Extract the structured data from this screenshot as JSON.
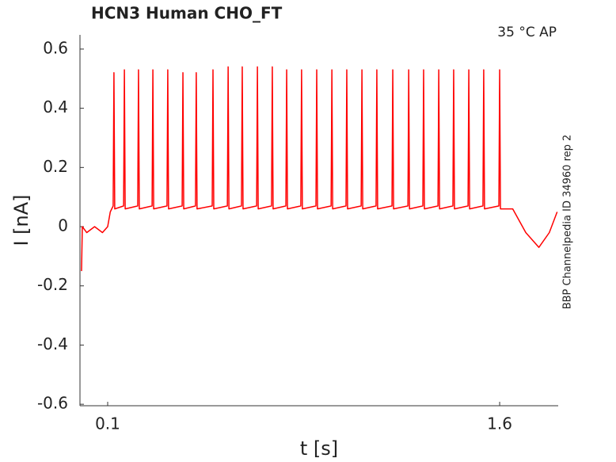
{
  "chart_data": {
    "type": "line",
    "title": "HCN3  Human  CHO_FT",
    "annotation": "35 °C  AP",
    "side_note": "BBP Channelpedia ID 34960 rep 2",
    "x_label": "t [s]",
    "y_label": "I [nA]",
    "xlim": [
      -0.006,
      1.824
    ],
    "ylim": [
      -0.605,
      0.648
    ],
    "xticks": [
      0.1,
      1.6
    ],
    "yticks": [
      -0.6,
      -0.4,
      -0.2,
      0,
      0.2,
      0.4,
      0.6
    ],
    "series": [
      {
        "color": "#ff0000",
        "x": [
          0,
          0.003,
          0.02,
          0.05,
          0.08,
          0.1,
          0.11,
          0.121,
          0.124,
          0.127,
          0.161,
          0.164,
          0.167,
          0.215,
          0.218,
          0.221,
          0.27,
          0.273,
          0.276,
          0.327,
          0.33,
          0.333,
          0.385,
          0.388,
          0.391,
          0.436,
          0.439,
          0.442,
          0.5,
          0.503,
          0.506,
          0.558,
          0.561,
          0.564,
          0.612,
          0.615,
          0.618,
          0.67,
          0.673,
          0.676,
          0.727,
          0.73,
          0.733,
          0.782,
          0.785,
          0.788,
          0.839,
          0.842,
          0.845,
          0.897,
          0.9,
          0.903,
          0.955,
          0.958,
          0.961,
          1.012,
          1.015,
          1.018,
          1.07,
          1.073,
          1.076,
          1.127,
          1.13,
          1.133,
          1.188,
          1.191,
          1.194,
          1.249,
          1.252,
          1.255,
          1.306,
          1.309,
          1.312,
          1.364,
          1.367,
          1.37,
          1.421,
          1.424,
          1.427,
          1.479,
          1.482,
          1.485,
          1.536,
          1.539,
          1.542,
          1.597,
          1.6,
          1.603,
          1.65,
          1.7,
          1.75,
          1.79,
          1.82
        ],
        "values": [
          -0.15,
          0.0,
          -0.02,
          0.0,
          -0.02,
          0.0,
          0.05,
          0.07,
          0.52,
          0.06,
          0.07,
          0.53,
          0.06,
          0.07,
          0.53,
          0.06,
          0.07,
          0.53,
          0.06,
          0.07,
          0.53,
          0.06,
          0.07,
          0.52,
          0.06,
          0.07,
          0.52,
          0.06,
          0.07,
          0.53,
          0.06,
          0.07,
          0.54,
          0.06,
          0.07,
          0.54,
          0.06,
          0.07,
          0.54,
          0.06,
          0.07,
          0.54,
          0.06,
          0.07,
          0.53,
          0.06,
          0.07,
          0.53,
          0.06,
          0.07,
          0.53,
          0.06,
          0.07,
          0.53,
          0.06,
          0.07,
          0.53,
          0.06,
          0.07,
          0.53,
          0.06,
          0.07,
          0.53,
          0.06,
          0.07,
          0.53,
          0.06,
          0.07,
          0.53,
          0.06,
          0.07,
          0.53,
          0.06,
          0.07,
          0.53,
          0.06,
          0.07,
          0.53,
          0.06,
          0.07,
          0.53,
          0.06,
          0.07,
          0.53,
          0.06,
          0.07,
          0.53,
          0.06,
          0.06,
          -0.02,
          -0.07,
          -0.02,
          0.05
        ]
      }
    ]
  }
}
